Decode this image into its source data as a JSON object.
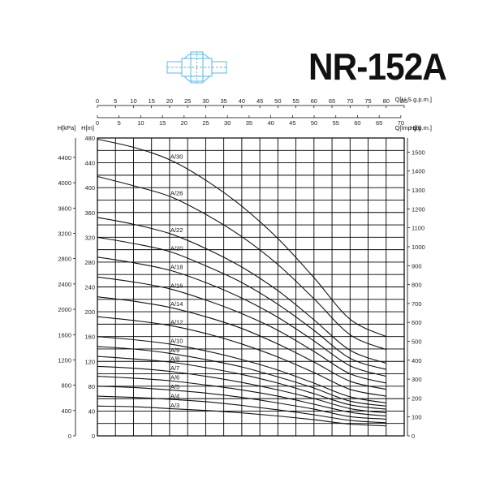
{
  "title": "NR-152A",
  "icon": "pump-section-icon",
  "chart_data": {
    "type": "line",
    "title": "NR-152A",
    "axes": {
      "q_us_gpm": {
        "label": "Q[U.S.g.p.m.]",
        "range": [
          0,
          85
        ],
        "ticks": [
          0,
          5,
          10,
          15,
          20,
          25,
          30,
          35,
          40,
          45,
          50,
          55,
          60,
          65,
          70,
          75,
          80,
          85
        ]
      },
      "q_imp_gpm": {
        "label": "Q[Imp.g.p.m.]",
        "range": [
          0,
          70
        ],
        "ticks": [
          0,
          5,
          10,
          15,
          20,
          25,
          30,
          35,
          40,
          45,
          50,
          55,
          60,
          65,
          70
        ]
      },
      "h_m": {
        "label": "H[m]",
        "range": [
          0,
          480
        ],
        "ticks": [
          0,
          40,
          80,
          120,
          160,
          200,
          240,
          280,
          320,
          360,
          400,
          440,
          480
        ]
      },
      "h_kpa": {
        "label": "H[kPa]",
        "ticks": [
          0,
          400,
          800,
          1200,
          1600,
          2000,
          2400,
          2800,
          3200,
          3600,
          4000,
          4400
        ]
      },
      "h_ft": {
        "label": "H[ft]",
        "ticks": [
          0,
          100,
          200,
          300,
          400,
          500,
          600,
          700,
          800,
          900,
          1000,
          1100,
          1200,
          1300,
          1400,
          1500
        ]
      }
    },
    "x_unit": "U.S.g.p.m.",
    "y_unit": "m",
    "grid": true,
    "series": [
      {
        "name": "A/30",
        "points": [
          [
            0,
            478
          ],
          [
            10,
            465
          ],
          [
            20,
            445
          ],
          [
            30,
            412
          ],
          [
            40,
            370
          ],
          [
            50,
            318
          ],
          [
            60,
            255
          ],
          [
            70,
            188
          ],
          [
            80,
            160
          ]
        ]
      },
      {
        "name": "A/26",
        "points": [
          [
            0,
            418
          ],
          [
            10,
            403
          ],
          [
            20,
            386
          ],
          [
            30,
            357
          ],
          [
            40,
            321
          ],
          [
            50,
            276
          ],
          [
            60,
            221
          ],
          [
            70,
            163
          ],
          [
            80,
            139
          ]
        ]
      },
      {
        "name": "A/22",
        "points": [
          [
            0,
            352
          ],
          [
            10,
            341
          ],
          [
            20,
            326
          ],
          [
            30,
            302
          ],
          [
            40,
            272
          ],
          [
            50,
            234
          ],
          [
            60,
            187
          ],
          [
            70,
            138
          ],
          [
            80,
            117
          ]
        ]
      },
      {
        "name": "A/20",
        "points": [
          [
            0,
            320
          ],
          [
            10,
            310
          ],
          [
            20,
            297
          ],
          [
            30,
            274
          ],
          [
            40,
            247
          ],
          [
            50,
            212
          ],
          [
            60,
            170
          ],
          [
            70,
            125
          ],
          [
            80,
            107
          ]
        ]
      },
      {
        "name": "A/18",
        "points": [
          [
            0,
            288
          ],
          [
            10,
            279
          ],
          [
            20,
            267
          ],
          [
            30,
            247
          ],
          [
            40,
            222
          ],
          [
            50,
            191
          ],
          [
            60,
            153
          ],
          [
            70,
            113
          ],
          [
            80,
            96
          ]
        ]
      },
      {
        "name": "A/16",
        "points": [
          [
            0,
            256
          ],
          [
            10,
            248
          ],
          [
            20,
            237
          ],
          [
            30,
            219
          ],
          [
            40,
            197
          ],
          [
            50,
            170
          ],
          [
            60,
            136
          ],
          [
            70,
            100
          ],
          [
            80,
            85
          ]
        ]
      },
      {
        "name": "A/14",
        "points": [
          [
            0,
            224
          ],
          [
            10,
            217
          ],
          [
            20,
            207
          ],
          [
            30,
            192
          ],
          [
            40,
            173
          ],
          [
            50,
            148
          ],
          [
            60,
            119
          ],
          [
            70,
            88
          ],
          [
            80,
            75
          ]
        ]
      },
      {
        "name": "A/12",
        "points": [
          [
            0,
            192
          ],
          [
            10,
            186
          ],
          [
            20,
            178
          ],
          [
            30,
            165
          ],
          [
            40,
            148
          ],
          [
            50,
            127
          ],
          [
            60,
            102
          ],
          [
            70,
            75
          ],
          [
            80,
            64
          ]
        ]
      },
      {
        "name": "A/10",
        "points": [
          [
            0,
            160
          ],
          [
            10,
            155
          ],
          [
            20,
            148
          ],
          [
            30,
            137
          ],
          [
            40,
            123
          ],
          [
            50,
            106
          ],
          [
            60,
            85
          ],
          [
            70,
            63
          ],
          [
            80,
            53
          ]
        ]
      },
      {
        "name": "A/9",
        "points": [
          [
            0,
            144
          ],
          [
            10,
            140
          ],
          [
            20,
            133
          ],
          [
            30,
            123
          ],
          [
            40,
            111
          ],
          [
            50,
            95
          ],
          [
            60,
            77
          ],
          [
            70,
            56
          ],
          [
            80,
            48
          ]
        ]
      },
      {
        "name": "A/8",
        "points": [
          [
            0,
            128
          ],
          [
            10,
            124
          ],
          [
            20,
            119
          ],
          [
            30,
            110
          ],
          [
            40,
            99
          ],
          [
            50,
            85
          ],
          [
            60,
            68
          ],
          [
            70,
            50
          ],
          [
            80,
            43
          ]
        ]
      },
      {
        "name": "A/7",
        "points": [
          [
            0,
            112
          ],
          [
            10,
            109
          ],
          [
            20,
            104
          ],
          [
            30,
            96
          ],
          [
            40,
            86
          ],
          [
            50,
            74
          ],
          [
            60,
            60
          ],
          [
            70,
            44
          ],
          [
            80,
            37
          ]
        ]
      },
      {
        "name": "A/6",
        "points": [
          [
            0,
            96
          ],
          [
            10,
            93
          ],
          [
            20,
            89
          ],
          [
            30,
            82
          ],
          [
            40,
            74
          ],
          [
            50,
            64
          ],
          [
            60,
            51
          ],
          [
            70,
            38
          ],
          [
            80,
            32
          ]
        ]
      },
      {
        "name": "A/5",
        "points": [
          [
            0,
            80
          ],
          [
            10,
            78
          ],
          [
            20,
            74
          ],
          [
            30,
            69
          ],
          [
            40,
            62
          ],
          [
            50,
            53
          ],
          [
            60,
            43
          ],
          [
            70,
            31
          ],
          [
            80,
            27
          ]
        ]
      },
      {
        "name": "A/4",
        "points": [
          [
            0,
            64
          ],
          [
            10,
            62
          ],
          [
            20,
            59
          ],
          [
            30,
            55
          ],
          [
            40,
            49
          ],
          [
            50,
            42
          ],
          [
            60,
            34
          ],
          [
            70,
            25
          ],
          [
            80,
            21
          ]
        ]
      },
      {
        "name": "A/3",
        "points": [
          [
            0,
            48
          ],
          [
            10,
            47
          ],
          [
            20,
            44
          ],
          [
            30,
            41
          ],
          [
            40,
            37
          ],
          [
            50,
            32
          ],
          [
            60,
            26
          ],
          [
            70,
            19
          ],
          [
            80,
            16
          ]
        ]
      }
    ]
  }
}
